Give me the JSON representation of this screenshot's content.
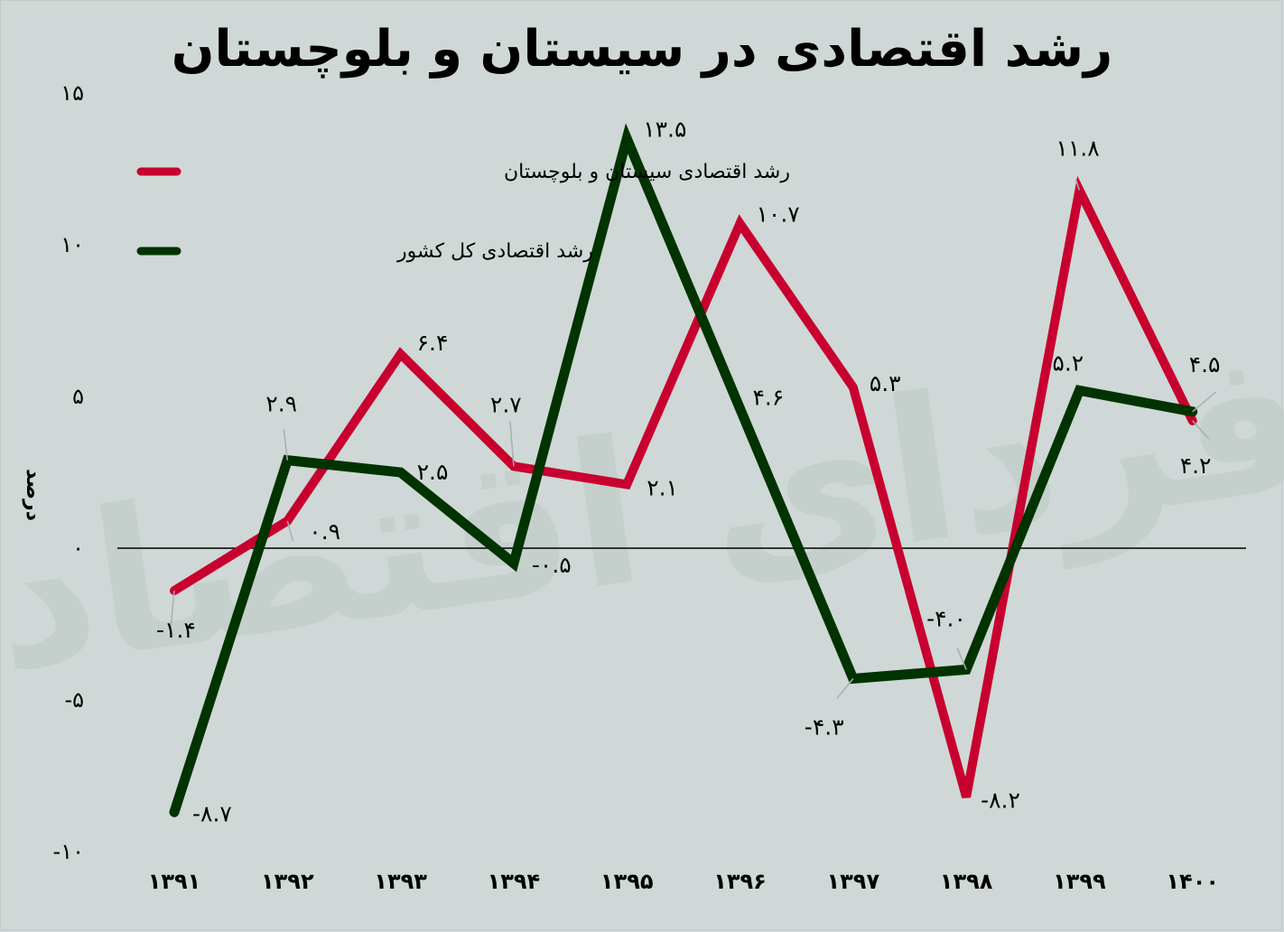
{
  "title": "رشد اقتصادی در سیستان و بلوچستان",
  "watermark": "فردای اقتصاد",
  "colors": {
    "background": "#cfd8d6",
    "sistan_line": "#c8002f",
    "country_line": "#003300",
    "zero_line": "#000000",
    "leader_line": "#a9aeae"
  },
  "chart_data": {
    "type": "line",
    "title": "رشد اقتصادی در سیستان و بلوچستان",
    "xlabel": "",
    "ylabel": "درصد",
    "categories": [
      "۱۳۹۱",
      "۱۳۹۲",
      "۱۳۹۳",
      "۱۳۹۴",
      "۱۳۹۵",
      "۱۳۹۶",
      "۱۳۹۷",
      "۱۳۹۸",
      "۱۳۹۹",
      "۱۴۰۰"
    ],
    "x": [
      1391,
      1392,
      1393,
      1394,
      1395,
      1396,
      1397,
      1398,
      1399,
      1400
    ],
    "series": [
      {
        "name": "رشد اقتصادی سیستان و بلوچستان",
        "color": "#c8002f",
        "values": [
          -1.4,
          0.9,
          6.4,
          2.7,
          2.1,
          10.7,
          5.3,
          -8.2,
          11.8,
          4.2
        ],
        "labels": [
          "-۱.۴",
          "۰.۹",
          "۶.۴",
          "۲.۷",
          "۲.۱",
          "۱۰.۷",
          "۵.۳",
          "-۸.۲",
          "۱۱.۸",
          "۴.۲"
        ]
      },
      {
        "name": "رشد اقتصادی کل کشور",
        "color": "#003300",
        "values": [
          -8.7,
          2.9,
          2.5,
          -0.5,
          13.5,
          4.6,
          -4.3,
          -4.0,
          5.2,
          4.5
        ],
        "labels": [
          "-۸.۷",
          "۲.۹",
          "۲.۵",
          "-۰.۵",
          "۱۳.۵",
          "۴.۶",
          "-۴.۳",
          "-۴.۰",
          "۵.۲",
          "۴.۵"
        ]
      }
    ],
    "yticks": [
      15,
      10,
      5,
      0,
      -5,
      -10
    ],
    "ytick_labels": [
      "۱۵",
      "۱۰",
      "۵",
      "۰",
      "-۵",
      "-۱۰"
    ],
    "ylim": [
      -10,
      15
    ],
    "grid": false,
    "zero_line": true,
    "legend_position": "top-left"
  },
  "legend": {
    "items": [
      {
        "label": "رشد اقتصادی سیستان و بلوچستان",
        "color": "#c8002f"
      },
      {
        "label": "رشد اقتصادی کل کشور",
        "color": "#003300"
      }
    ]
  },
  "axis": {
    "ylabel": "درصد"
  }
}
